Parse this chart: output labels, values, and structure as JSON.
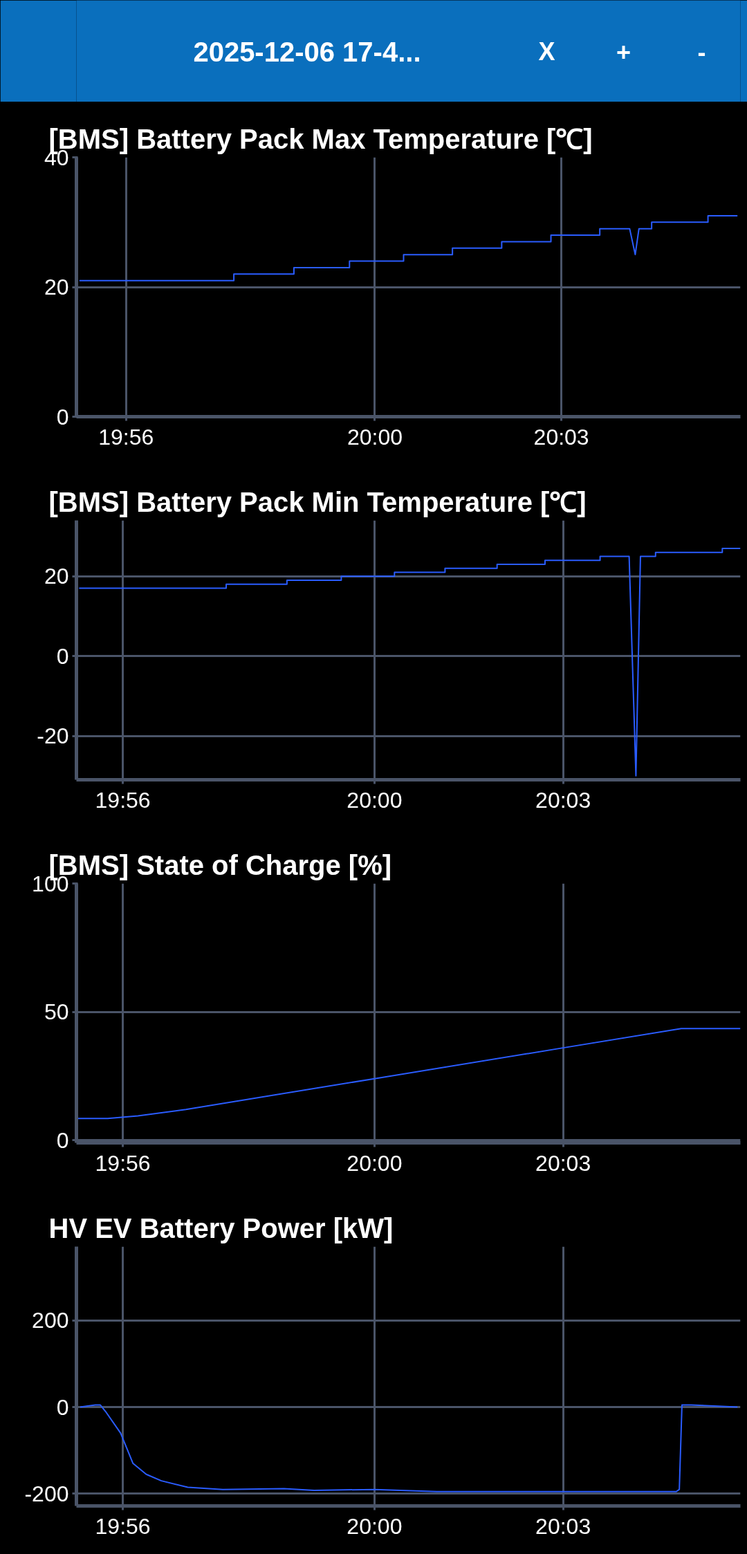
{
  "chart_data": [
    {
      "type": "other",
      "title": "2025-12-06 17-4...",
      "annotations": [
        "X",
        "+",
        "-"
      ]
    },
    {
      "type": "line",
      "title": "[BMS] Battery Pack Max Temperature [℃]",
      "xlim": [
        19.92,
        20.098
      ],
      "ylim": [
        0,
        40
      ],
      "yticks": [
        0,
        20,
        40
      ],
      "xticks": [
        {
          "value": 19.9333,
          "label": "19:56"
        },
        {
          "value": 20.0,
          "label": "20:00"
        },
        {
          "value": 20.05,
          "label": "20:03"
        }
      ],
      "grid": true,
      "series": [
        {
          "color": "#2a5cff",
          "x": [
            19.9208,
            19.9622,
            19.9622,
            19.9783,
            19.9783,
            19.9932,
            19.9932,
            20.0077,
            20.0077,
            20.0208,
            20.0208,
            20.034,
            20.034,
            20.0472,
            20.0472,
            20.0603,
            20.0603,
            20.0683,
            20.0698,
            20.0708,
            20.0742,
            20.0742,
            20.0893,
            20.0893,
            20.0972
          ],
          "values": [
            21,
            21,
            22,
            22,
            23,
            23,
            24,
            24,
            25,
            25,
            26,
            26,
            27,
            27,
            28,
            28,
            29,
            29,
            25,
            29,
            29,
            30,
            30,
            31,
            31
          ]
        }
      ]
    },
    {
      "type": "line",
      "title": "[BMS] Battery Pack Min Temperature [℃]",
      "xlim": [
        19.921,
        20.097
      ],
      "ylim": [
        -31,
        34
      ],
      "yticks": [
        -20,
        0,
        20
      ],
      "xticks": [
        {
          "value": 19.9333,
          "label": "19:56"
        },
        {
          "value": 20.0,
          "label": "20:00"
        },
        {
          "value": 20.05,
          "label": "20:03"
        }
      ],
      "grid": true,
      "series": [
        {
          "color": "#2a5cff",
          "x": [
            19.9217,
            19.9607,
            19.9607,
            19.9768,
            19.9768,
            19.9912,
            19.9912,
            20.0053,
            20.0053,
            20.0187,
            20.0187,
            20.0325,
            20.0325,
            20.0452,
            20.0452,
            20.0598,
            20.0598,
            20.0675,
            20.0693,
            20.0705,
            20.0745,
            20.0745,
            20.0922,
            20.0922,
            20.097
          ],
          "values": [
            17,
            17,
            18,
            18,
            19,
            19,
            20,
            20,
            21,
            21,
            22,
            22,
            23,
            23,
            24,
            24,
            25,
            25,
            -30,
            25,
            25,
            26,
            26,
            27,
            27
          ]
        }
      ]
    },
    {
      "type": "line",
      "title": "[BMS] State of Charge [%]",
      "xlim": [
        19.921,
        20.097
      ],
      "ylim": [
        -1,
        100
      ],
      "yticks": [
        0,
        50,
        100
      ],
      "xticks": [
        {
          "value": 19.9333,
          "label": "19:56"
        },
        {
          "value": 20.0,
          "label": "20:00"
        },
        {
          "value": 20.05,
          "label": "20:03"
        }
      ],
      "grid": true,
      "series": [
        {
          "color": "#2a5cff",
          "x": [
            19.9213,
            19.9293,
            19.9373,
            19.95,
            20.0,
            20.05,
            20.0813,
            20.097
          ],
          "values": [
            8.5,
            8.5,
            9.5,
            12,
            24,
            36,
            43.5,
            43.5
          ]
        }
      ]
    },
    {
      "type": "line",
      "title": "HV EV Battery Power [kW]",
      "xlim": [
        19.921,
        20.097
      ],
      "ylim": [
        -228,
        370
      ],
      "yticks": [
        -200,
        0,
        200
      ],
      "xticks": [
        {
          "value": 19.9333,
          "label": "19:56"
        },
        {
          "value": 20.0,
          "label": "20:00"
        },
        {
          "value": 20.05,
          "label": "20:03"
        }
      ],
      "grid": true,
      "series": [
        {
          "color": "#2a5cff",
          "x": [
            19.922,
            19.926,
            19.9273,
            19.9287,
            19.9327,
            19.936,
            19.9395,
            19.9435,
            19.9505,
            19.9598,
            19.976,
            19.984,
            20.0,
            20.0165,
            20.08,
            20.0808,
            20.0815,
            20.084,
            20.0962
          ],
          "values": [
            0,
            5,
            5,
            -10,
            -60,
            -130,
            -155,
            -170,
            -185,
            -190,
            -188,
            -192,
            -190,
            -195,
            -195,
            -190,
            5,
            5,
            0
          ]
        }
      ]
    }
  ]
}
